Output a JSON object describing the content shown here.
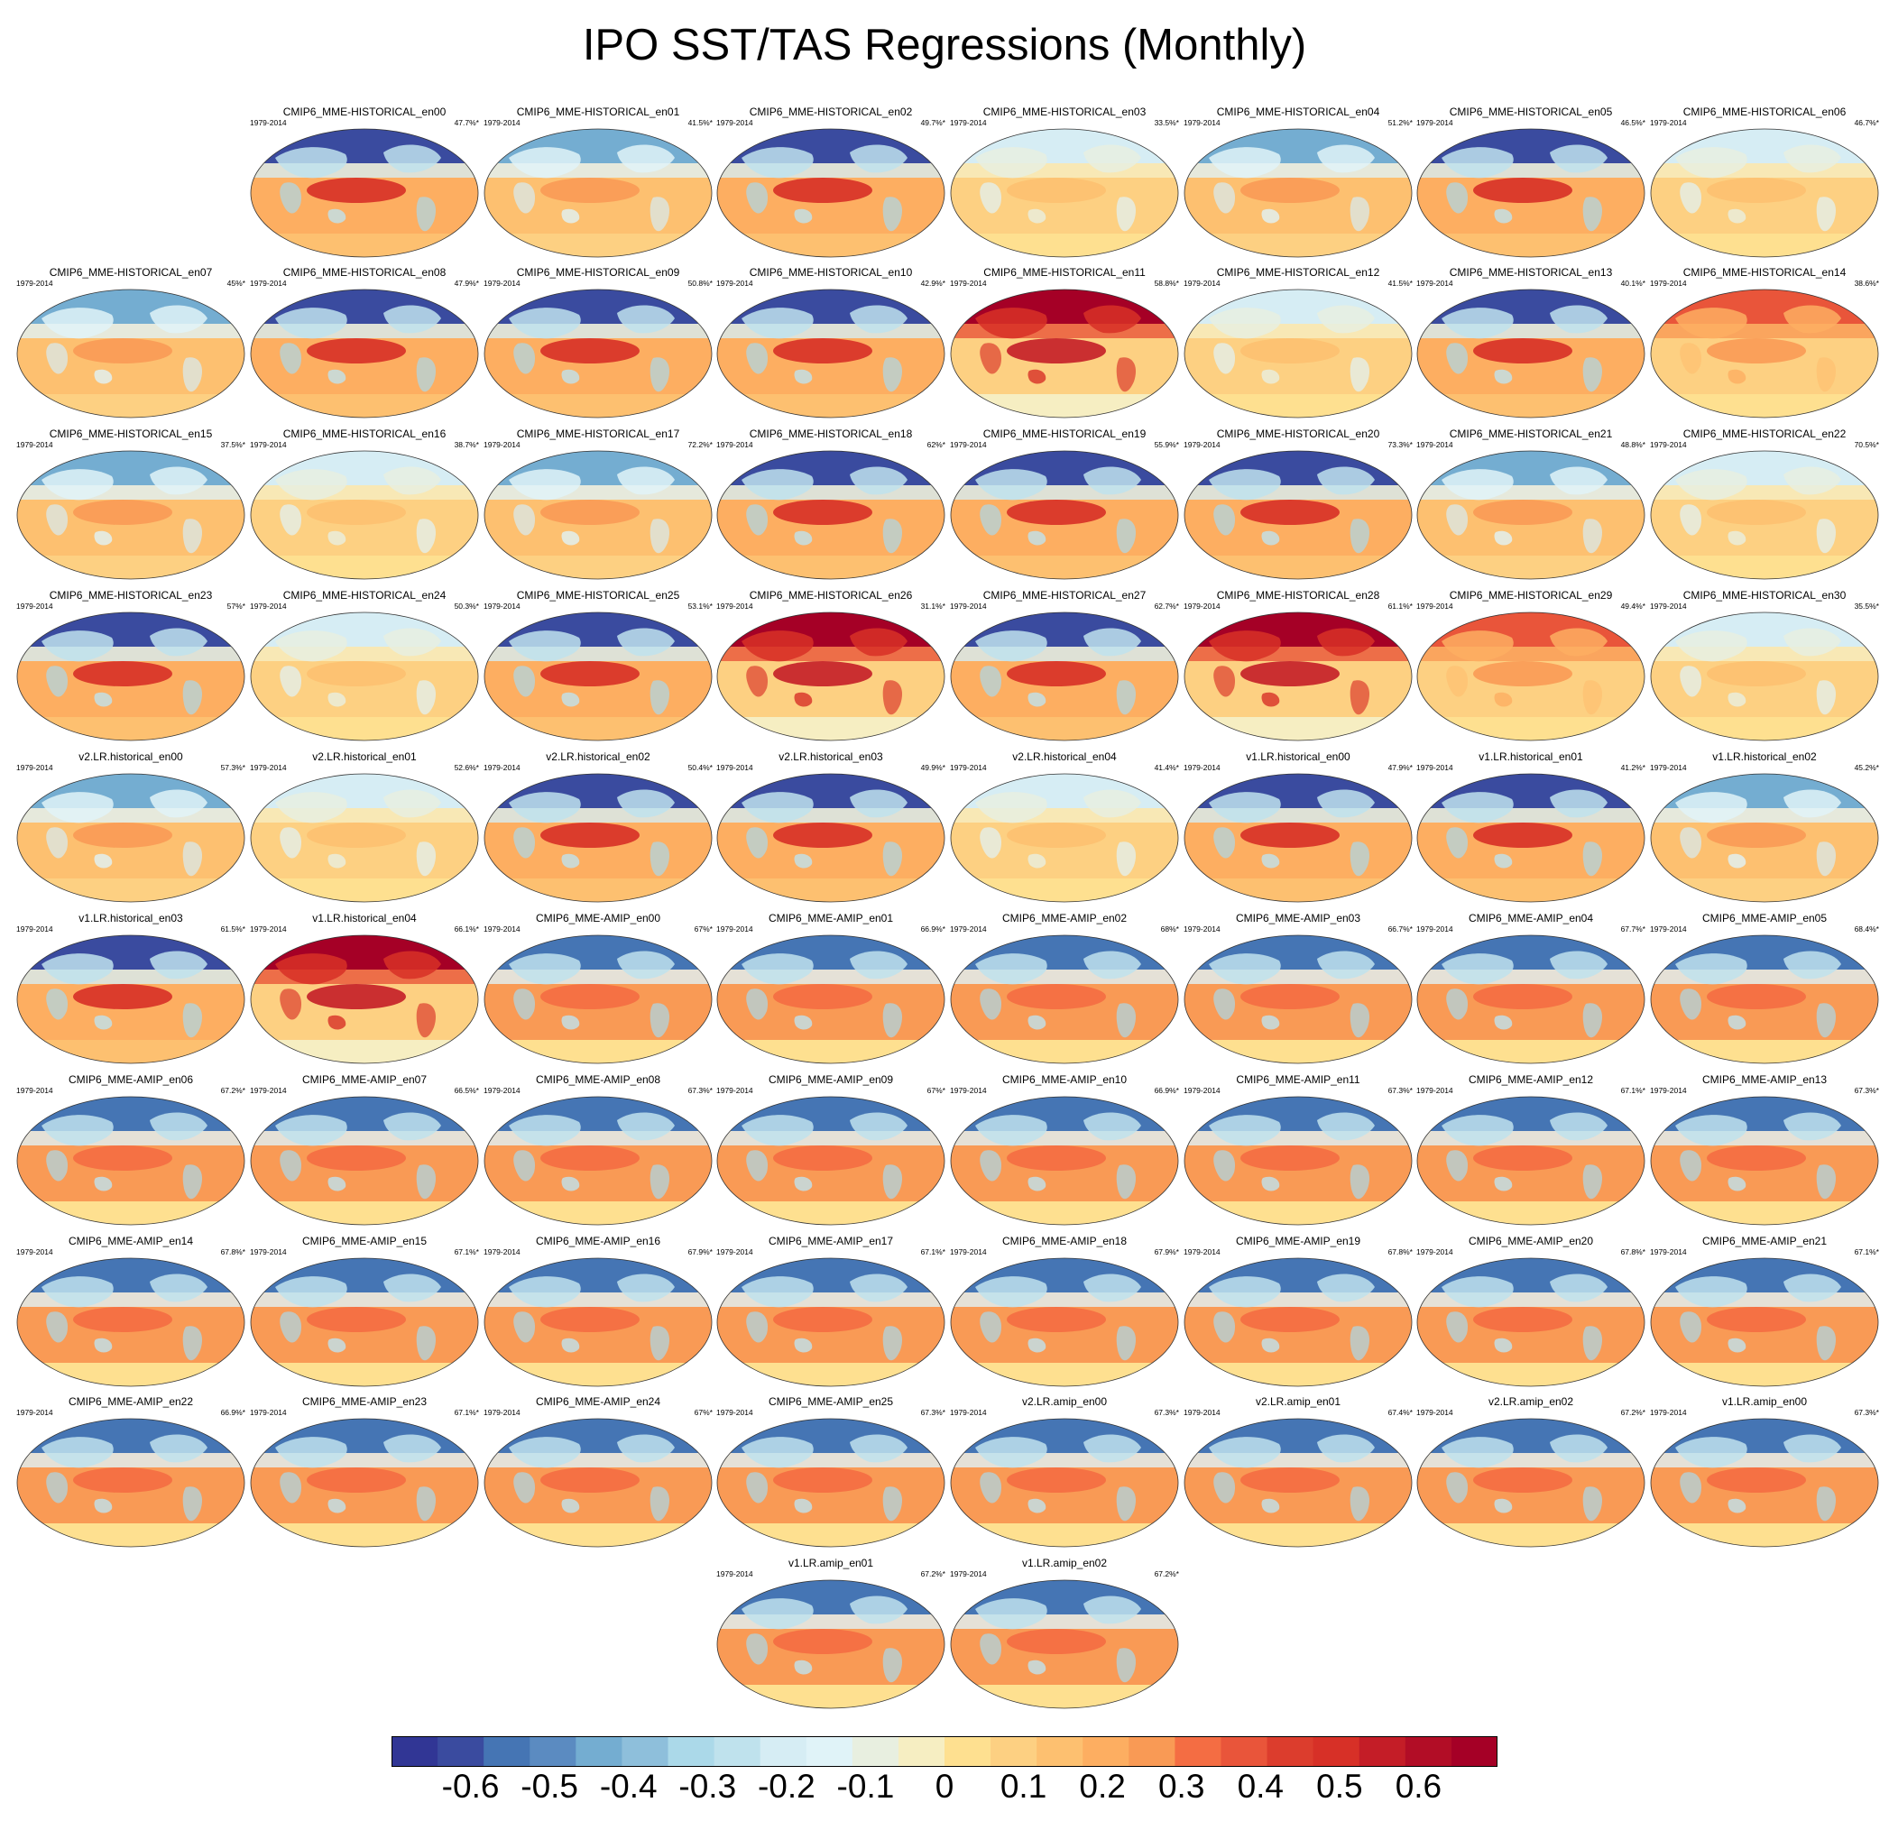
{
  "chart_data": {
    "type": "heatmap",
    "title": "IPO SST/TAS Regressions (Monthly)",
    "period": "1979-2014",
    "panels": [
      {
        "name": "CMIP6_MME-HISTORICAL_en00",
        "pct": "47.7%*",
        "pattern": "cool"
      },
      {
        "name": "CMIP6_MME-HISTORICAL_en01",
        "pct": "41.5%*",
        "pattern": "mixed"
      },
      {
        "name": "CMIP6_MME-HISTORICAL_en02",
        "pct": "49.7%*",
        "pattern": "cool"
      },
      {
        "name": "CMIP6_MME-HISTORICAL_en03",
        "pct": "33.5%*",
        "pattern": "mild"
      },
      {
        "name": "CMIP6_MME-HISTORICAL_en04",
        "pct": "51.2%*",
        "pattern": "mixed"
      },
      {
        "name": "CMIP6_MME-HISTORICAL_en05",
        "pct": "46.5%*",
        "pattern": "cool"
      },
      {
        "name": "CMIP6_MME-HISTORICAL_en06",
        "pct": "46.7%*",
        "pattern": "mild"
      },
      {
        "name": "CMIP6_MME-HISTORICAL_en07",
        "pct": "45%*",
        "pattern": "mixed"
      },
      {
        "name": "CMIP6_MME-HISTORICAL_en08",
        "pct": "47.9%*",
        "pattern": "cool"
      },
      {
        "name": "CMIP6_MME-HISTORICAL_en09",
        "pct": "50.8%*",
        "pattern": "cool"
      },
      {
        "name": "CMIP6_MME-HISTORICAL_en10",
        "pct": "42.9%*",
        "pattern": "cool"
      },
      {
        "name": "CMIP6_MME-HISTORICAL_en11",
        "pct": "58.8%*",
        "pattern": "warm"
      },
      {
        "name": "CMIP6_MME-HISTORICAL_en12",
        "pct": "41.5%*",
        "pattern": "mild"
      },
      {
        "name": "CMIP6_MME-HISTORICAL_en13",
        "pct": "40.1%*",
        "pattern": "cool"
      },
      {
        "name": "CMIP6_MME-HISTORICAL_en14",
        "pct": "38.6%*",
        "pattern": "warmish"
      },
      {
        "name": "CMIP6_MME-HISTORICAL_en15",
        "pct": "37.5%*",
        "pattern": "mixed"
      },
      {
        "name": "CMIP6_MME-HISTORICAL_en16",
        "pct": "38.7%*",
        "pattern": "mild"
      },
      {
        "name": "CMIP6_MME-HISTORICAL_en17",
        "pct": "72.2%*",
        "pattern": "mixed"
      },
      {
        "name": "CMIP6_MME-HISTORICAL_en18",
        "pct": "62%*",
        "pattern": "cool"
      },
      {
        "name": "CMIP6_MME-HISTORICAL_en19",
        "pct": "55.9%*",
        "pattern": "cool"
      },
      {
        "name": "CMIP6_MME-HISTORICAL_en20",
        "pct": "73.3%*",
        "pattern": "cool"
      },
      {
        "name": "CMIP6_MME-HISTORICAL_en21",
        "pct": "48.8%*",
        "pattern": "mixed"
      },
      {
        "name": "CMIP6_MME-HISTORICAL_en22",
        "pct": "70.5%*",
        "pattern": "mild"
      },
      {
        "name": "CMIP6_MME-HISTORICAL_en23",
        "pct": "57%*",
        "pattern": "cool"
      },
      {
        "name": "CMIP6_MME-HISTORICAL_en24",
        "pct": "50.3%*",
        "pattern": "mild"
      },
      {
        "name": "CMIP6_MME-HISTORICAL_en25",
        "pct": "53.1%*",
        "pattern": "cool"
      },
      {
        "name": "CMIP6_MME-HISTORICAL_en26",
        "pct": "31.1%*",
        "pattern": "warm"
      },
      {
        "name": "CMIP6_MME-HISTORICAL_en27",
        "pct": "62.7%*",
        "pattern": "cool"
      },
      {
        "name": "CMIP6_MME-HISTORICAL_en28",
        "pct": "61.1%*",
        "pattern": "warm"
      },
      {
        "name": "CMIP6_MME-HISTORICAL_en29",
        "pct": "49.4%*",
        "pattern": "warmish"
      },
      {
        "name": "CMIP6_MME-HISTORICAL_en30",
        "pct": "35.5%*",
        "pattern": "mild"
      },
      {
        "name": "v2.LR.historical_en00",
        "pct": "57.3%*",
        "pattern": "mixed"
      },
      {
        "name": "v2.LR.historical_en01",
        "pct": "52.6%*",
        "pattern": "mild"
      },
      {
        "name": "v2.LR.historical_en02",
        "pct": "50.4%*",
        "pattern": "cool"
      },
      {
        "name": "v2.LR.historical_en03",
        "pct": "49.9%*",
        "pattern": "cool"
      },
      {
        "name": "v2.LR.historical_en04",
        "pct": "41.4%*",
        "pattern": "mild"
      },
      {
        "name": "v1.LR.historical_en00",
        "pct": "47.9%*",
        "pattern": "cool"
      },
      {
        "name": "v1.LR.historical_en01",
        "pct": "41.2%*",
        "pattern": "cool"
      },
      {
        "name": "v1.LR.historical_en02",
        "pct": "45.2%*",
        "pattern": "mixed"
      },
      {
        "name": "v1.LR.historical_en03",
        "pct": "61.5%*",
        "pattern": "cool"
      },
      {
        "name": "v1.LR.historical_en04",
        "pct": "66.1%*",
        "pattern": "warm"
      },
      {
        "name": "CMIP6_MME-AMIP_en00",
        "pct": "67%*",
        "pattern": "amip"
      },
      {
        "name": "CMIP6_MME-AMIP_en01",
        "pct": "66.9%*",
        "pattern": "amip"
      },
      {
        "name": "CMIP6_MME-AMIP_en02",
        "pct": "68%*",
        "pattern": "amip"
      },
      {
        "name": "CMIP6_MME-AMIP_en03",
        "pct": "66.7%*",
        "pattern": "amip"
      },
      {
        "name": "CMIP6_MME-AMIP_en04",
        "pct": "67.7%*",
        "pattern": "amip"
      },
      {
        "name": "CMIP6_MME-AMIP_en05",
        "pct": "68.4%*",
        "pattern": "amip"
      },
      {
        "name": "CMIP6_MME-AMIP_en06",
        "pct": "67.2%*",
        "pattern": "amip"
      },
      {
        "name": "CMIP6_MME-AMIP_en07",
        "pct": "66.5%*",
        "pattern": "amip"
      },
      {
        "name": "CMIP6_MME-AMIP_en08",
        "pct": "67.3%*",
        "pattern": "amip"
      },
      {
        "name": "CMIP6_MME-AMIP_en09",
        "pct": "67%*",
        "pattern": "amip"
      },
      {
        "name": "CMIP6_MME-AMIP_en10",
        "pct": "66.9%*",
        "pattern": "amip"
      },
      {
        "name": "CMIP6_MME-AMIP_en11",
        "pct": "67.3%*",
        "pattern": "amip"
      },
      {
        "name": "CMIP6_MME-AMIP_en12",
        "pct": "67.1%*",
        "pattern": "amip"
      },
      {
        "name": "CMIP6_MME-AMIP_en13",
        "pct": "67.3%*",
        "pattern": "amip"
      },
      {
        "name": "CMIP6_MME-AMIP_en14",
        "pct": "67.8%*",
        "pattern": "amip"
      },
      {
        "name": "CMIP6_MME-AMIP_en15",
        "pct": "67.1%*",
        "pattern": "amip"
      },
      {
        "name": "CMIP6_MME-AMIP_en16",
        "pct": "67.9%*",
        "pattern": "amip"
      },
      {
        "name": "CMIP6_MME-AMIP_en17",
        "pct": "67.1%*",
        "pattern": "amip"
      },
      {
        "name": "CMIP6_MME-AMIP_en18",
        "pct": "67.9%*",
        "pattern": "amip"
      },
      {
        "name": "CMIP6_MME-AMIP_en19",
        "pct": "67.8%*",
        "pattern": "amip"
      },
      {
        "name": "CMIP6_MME-AMIP_en20",
        "pct": "67.8%*",
        "pattern": "amip"
      },
      {
        "name": "CMIP6_MME-AMIP_en21",
        "pct": "67.1%*",
        "pattern": "amip"
      },
      {
        "name": "CMIP6_MME-AMIP_en22",
        "pct": "66.9%*",
        "pattern": "amip"
      },
      {
        "name": "CMIP6_MME-AMIP_en23",
        "pct": "67.1%*",
        "pattern": "amip"
      },
      {
        "name": "CMIP6_MME-AMIP_en24",
        "pct": "67%*",
        "pattern": "amip"
      },
      {
        "name": "CMIP6_MME-AMIP_en25",
        "pct": "67.3%*",
        "pattern": "amip"
      },
      {
        "name": "v2.LR.amip_en00",
        "pct": "67.3%*",
        "pattern": "amip"
      },
      {
        "name": "v2.LR.amip_en01",
        "pct": "67.4%*",
        "pattern": "amip"
      },
      {
        "name": "v2.LR.amip_en02",
        "pct": "67.2%*",
        "pattern": "amip"
      },
      {
        "name": "v1.LR.amip_en00",
        "pct": "67.3%*",
        "pattern": "amip"
      },
      {
        "name": "v1.LR.amip_en01",
        "pct": "67.2%*",
        "pattern": "amip"
      },
      {
        "name": "v1.LR.amip_en02",
        "pct": "67.2%*",
        "pattern": "amip"
      }
    ],
    "colorbar": {
      "min": -0.7,
      "max": 0.7,
      "step": 0.05,
      "tick_labels": [
        "-0.6",
        "-0.5",
        "-0.4",
        "-0.3",
        "-0.2",
        "-0.1",
        "0",
        "0.1",
        "0.2",
        "0.3",
        "0.4",
        "0.5",
        "0.6"
      ],
      "colors": [
        "#313695",
        "#3a4b9f",
        "#4575b4",
        "#5b8bc1",
        "#74add1",
        "#8ebfdb",
        "#abd9e9",
        "#bfe2ed",
        "#d6edf4",
        "#e0f3f8",
        "#e8efe0",
        "#f6eec2",
        "#fee090",
        "#fdd082",
        "#fdc070",
        "#fdae61",
        "#f99a55",
        "#f46d43",
        "#e9553a",
        "#dc3d2d",
        "#d73027",
        "#c41d27",
        "#b20d26",
        "#a50026"
      ]
    }
  }
}
